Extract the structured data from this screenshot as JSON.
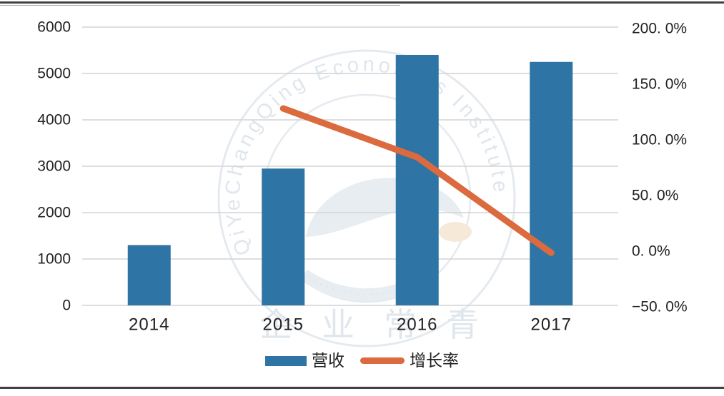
{
  "colors": {
    "bar": "#2E74A4",
    "line": "#DB6A3E",
    "grid": "#D9D9D9",
    "axis_text": "#212121",
    "border": "#424242",
    "watermark_line": "#E2E8EE",
    "watermark_text": "#DCE4EB",
    "watermark_fill": "#E6ECF1",
    "watermark_accent": "#F7E7D3"
  },
  "watermark": {
    "circle_text": "QiYeChangQing Economics Institute",
    "bottom_text": "企业常青"
  },
  "chart_data": {
    "type": "combo",
    "subtypes": [
      "bar",
      "line"
    ],
    "title": "",
    "categories": [
      "2014",
      "2015",
      "2016",
      "2017"
    ],
    "series": [
      {
        "name": "营收",
        "type": "bar",
        "axis": "left",
        "values": [
          1300,
          2950,
          5400,
          5250
        ]
      },
      {
        "name": "增长率",
        "type": "line",
        "axis": "right",
        "values": [
          null,
          126.9,
          83.1,
          -2.8
        ]
      }
    ],
    "left_axis": {
      "min": 0,
      "max": 6000,
      "ticks": [
        "6000",
        "5000",
        "4000",
        "3000",
        "2000",
        "1000",
        "0"
      ]
    },
    "right_axis": {
      "min": -50,
      "max": 200,
      "ticks": [
        "200. 0%",
        "150. 0%",
        "100. 0%",
        "50. 0%",
        "0. 0%",
        "−50. 0%"
      ]
    },
    "grid": true,
    "legend_position": "bottom"
  }
}
